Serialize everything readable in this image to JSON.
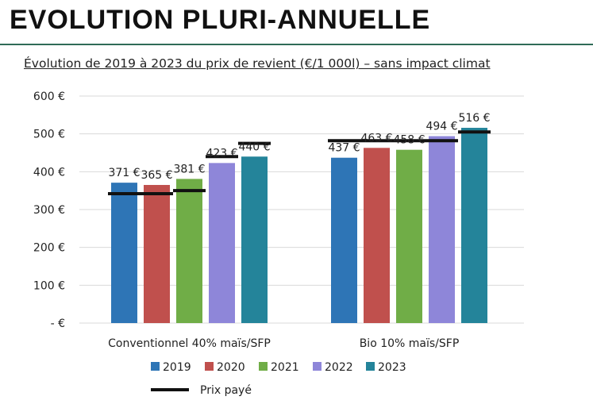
{
  "header": {
    "title": "EVOLUTION PLURI-ANNUELLE"
  },
  "chart_data": {
    "type": "bar",
    "title": "Évolution de 2019 à 2023 du prix de revient (€/1 000l) – sans impact climat",
    "categories": [
      "Conventionnel 40% maïs/SFP",
      "Bio 10% maïs/SFP"
    ],
    "series": [
      {
        "name": "2019",
        "color": "#2e75b6",
        "values": [
          371,
          437
        ],
        "labels": [
          "371 €",
          "437 €"
        ]
      },
      {
        "name": "2020",
        "color": "#c0504d",
        "values": [
          365,
          463
        ],
        "labels": [
          "365 €",
          "463 €"
        ]
      },
      {
        "name": "2021",
        "color": "#70ad47",
        "values": [
          381,
          458
        ],
        "labels": [
          "381 €",
          "458 €"
        ]
      },
      {
        "name": "2022",
        "color": "#8e86d9",
        "values": [
          423,
          494
        ],
        "labels": [
          "423 €",
          "494 €"
        ]
      },
      {
        "name": "2023",
        "color": "#24849a",
        "values": [
          440,
          516
        ],
        "labels": [
          "440 €",
          "516 €"
        ]
      }
    ],
    "prix_paye": {
      "name": "Prix payé",
      "color": "#111111",
      "values": [
        [
          342,
          342,
          350,
          440,
          475
        ],
        [
          482,
          482,
          482,
          482,
          505
        ]
      ]
    },
    "yticks": [
      0,
      100,
      200,
      300,
      400,
      500,
      600
    ],
    "ytick_labels": [
      "-  €",
      "100 €",
      "200 €",
      "300 €",
      "400 €",
      "500 €",
      "600 €"
    ],
    "ylim": [
      0,
      600
    ],
    "grid": true,
    "legend_position": "bottom"
  }
}
